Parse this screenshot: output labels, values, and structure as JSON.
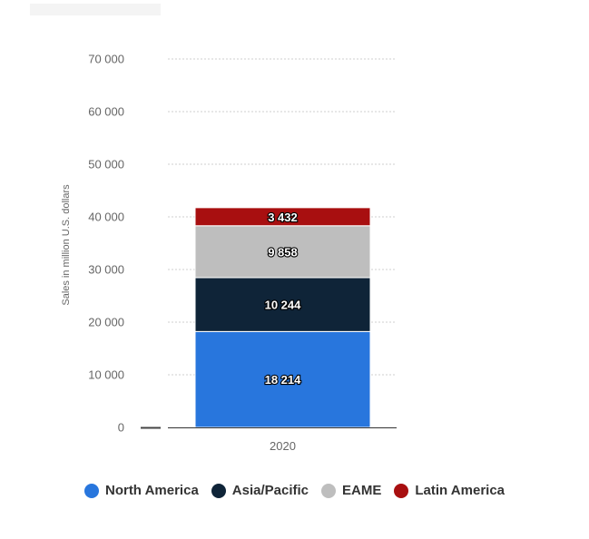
{
  "chart_data": {
    "type": "bar",
    "stacked": true,
    "categories": [
      "2020"
    ],
    "series": [
      {
        "name": "North America",
        "values": [
          18214
        ],
        "label": "18 214",
        "color": "#2876dd"
      },
      {
        "name": "Asia/Pacific",
        "values": [
          10244
        ],
        "label": "10 244",
        "color": "#0f2438"
      },
      {
        "name": "EAME",
        "values": [
          9858
        ],
        "label": "9 858",
        "color": "#bebebe"
      },
      {
        "name": "Latin America",
        "values": [
          3432
        ],
        "label": "3 432",
        "color": "#a80f10"
      }
    ],
    "ylabel": "Sales in million U.S. dollars",
    "ylim": [
      0,
      70000
    ],
    "yticks": [
      0,
      10000,
      20000,
      30000,
      40000,
      50000,
      60000,
      70000
    ],
    "ytick_labels": [
      "0",
      "10 000",
      "20 000",
      "30 000",
      "40 000",
      "50 000",
      "60 000",
      "70 000"
    ],
    "grid": true,
    "legend_position": "bottom"
  }
}
